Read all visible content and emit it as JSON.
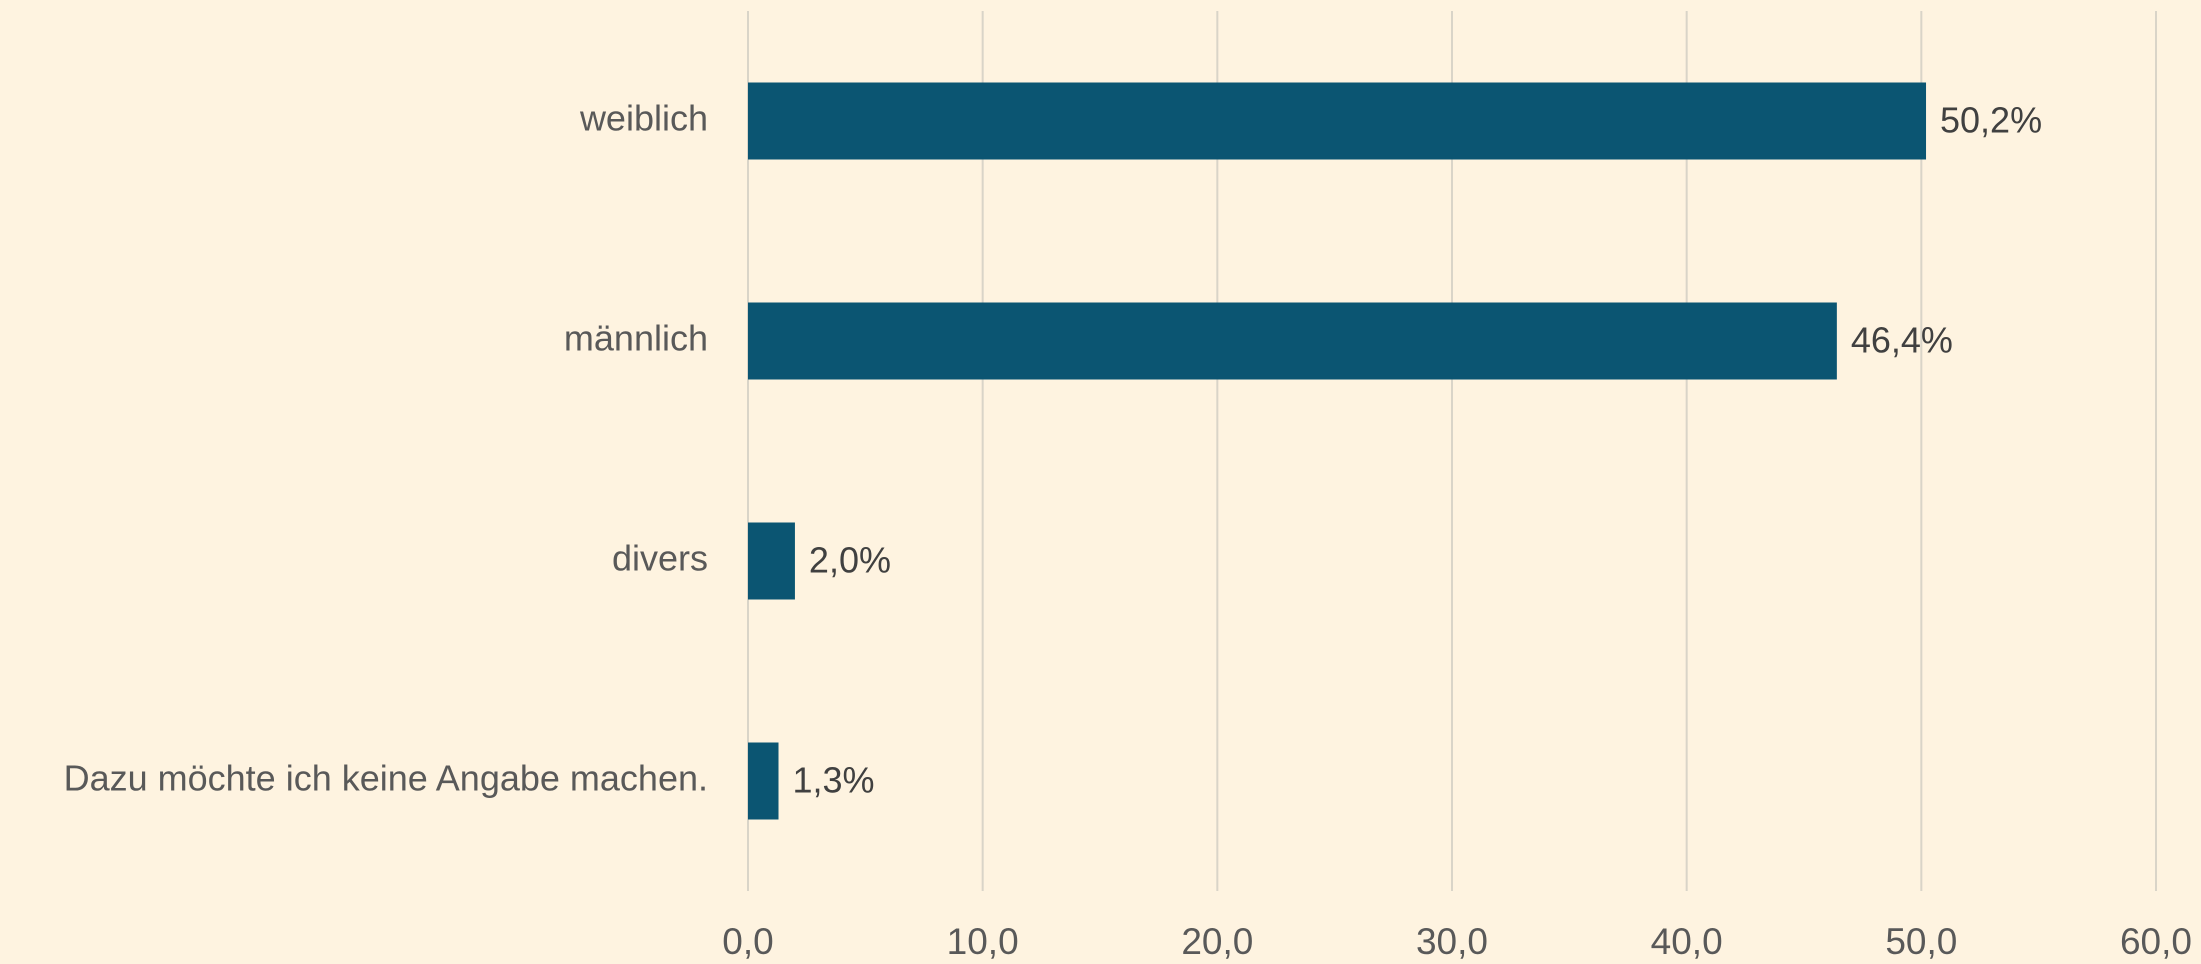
{
  "chart_data": {
    "type": "bar",
    "orientation": "horizontal",
    "categories": [
      "weiblich",
      "männlich",
      "divers",
      "Dazu möchte ich keine Angabe machen."
    ],
    "values": [
      50.2,
      46.4,
      2.0,
      1.3
    ],
    "value_labels": [
      "50,2%",
      "46,4%",
      "2,0%",
      "1,3%"
    ],
    "color": "#0b5572",
    "xlim": [
      0,
      60
    ],
    "xticks": [
      {
        "value": 0,
        "label": "0,0"
      },
      {
        "value": 10,
        "label": "10,0"
      },
      {
        "value": 20,
        "label": "20,0"
      },
      {
        "value": 30,
        "label": "30,0"
      },
      {
        "value": 40,
        "label": "40,0"
      },
      {
        "value": 50,
        "label": "50,0"
      },
      {
        "value": 60,
        "label": "60,0"
      }
    ],
    "grid": true
  }
}
